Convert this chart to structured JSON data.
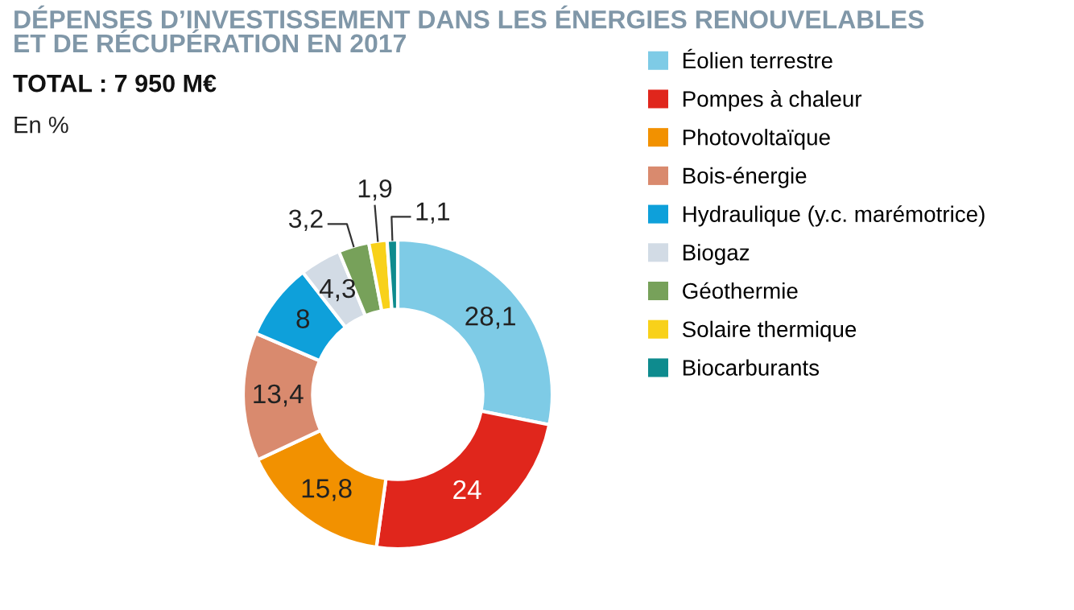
{
  "chart_data": {
    "type": "donut",
    "title": "DÉPENSES D’INVESTISSEMENT DANS LES ÉNERGIES RENOUVELABLES\nET DE RÉCUPÉRATION EN 2017",
    "subtitle": "TOTAL : 7 950 M€",
    "annotations": [
      "En %"
    ],
    "categories": [
      "Éolien terrestre",
      "Pompes à chaleur",
      "Photovoltaïque",
      "Bois-énergie",
      "Hydraulique (y.c. marémotrice)",
      "Biogaz",
      "Géothermie",
      "Solaire thermique",
      "Biocarburants"
    ],
    "values": [
      28.1,
      24,
      15.8,
      13.4,
      8,
      4.3,
      3.2,
      1.9,
      1.1
    ],
    "value_labels": [
      "28,1",
      "24",
      "15,8",
      "13,4",
      "8",
      "4,3",
      "3,2",
      "1,9",
      "1,1"
    ],
    "colors": [
      "#7ecbe6",
      "#e0261c",
      "#f29100",
      "#d98a6e",
      "#0ea0da",
      "#d2dbe5",
      "#77a15a",
      "#f8d11a",
      "#0e8b8e"
    ],
    "legend": "right"
  }
}
